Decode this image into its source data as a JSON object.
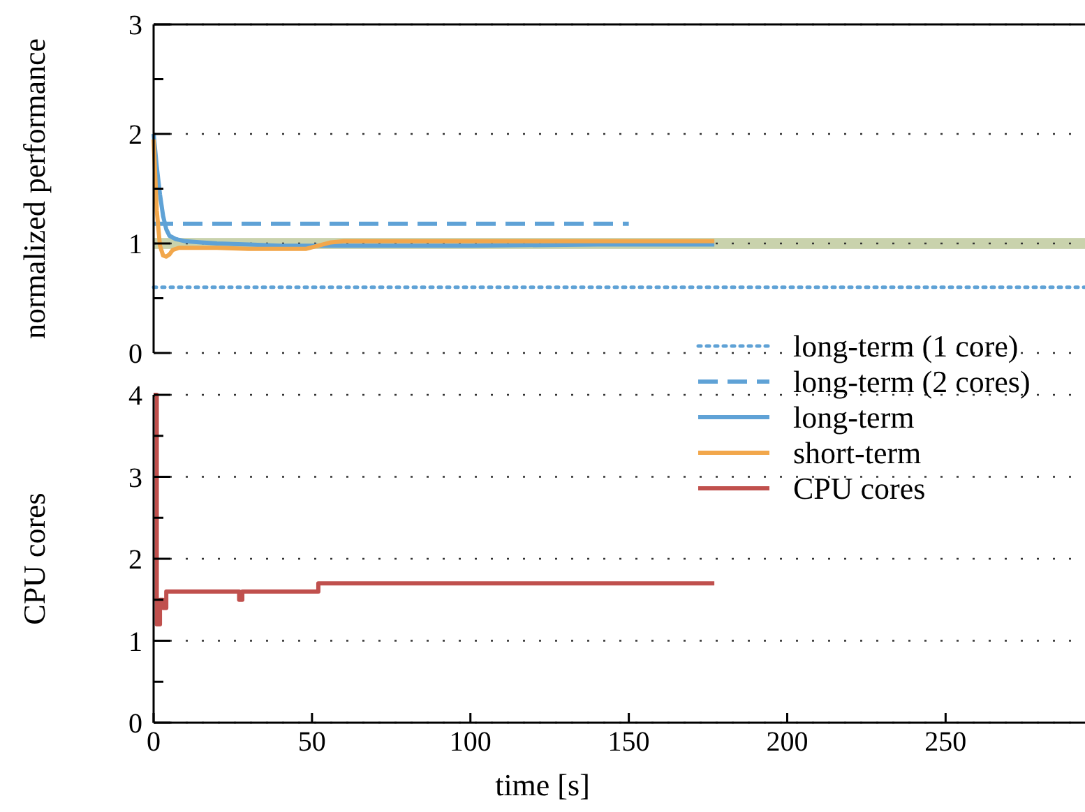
{
  "chart_data": [
    {
      "type": "line",
      "ylabel": "normalized performance",
      "xlim": [
        0,
        294
      ],
      "ylim": [
        0,
        3
      ],
      "yticks": [
        0,
        {
          "value": 0.5,
          "label": null
        },
        1,
        {
          "value": 1.5,
          "label": null
        },
        2,
        {
          "value": 2.5,
          "label": null
        },
        3
      ],
      "tick_labels": "y",
      "grid": "y",
      "legend": "bottom right",
      "bands": [
        {
          "axis": "y",
          "from": 0.95,
          "to": 1.05,
          "color": "#c9d2ac"
        }
      ],
      "series": [
        {
          "name": "long-term (1 core)",
          "color": "#5fa2d6",
          "line_style": "dotted",
          "x": [
            0,
            294
          ],
          "values": [
            0.6,
            0.6
          ]
        },
        {
          "name": "long-term (2 cores)",
          "color": "#5fa2d6",
          "line_style": "dashed",
          "x": [
            0,
            150
          ],
          "values": [
            1.18,
            1.18
          ]
        },
        {
          "name": "long-term",
          "color": "#5fa2d6",
          "line_style": "solid",
          "x": [
            0,
            1,
            2,
            3,
            4,
            5,
            7,
            10,
            15,
            20,
            30,
            40,
            50,
            60,
            80,
            100,
            140,
            177
          ],
          "values": [
            2.0,
            1.7,
            1.45,
            1.25,
            1.13,
            1.07,
            1.04,
            1.02,
            1.01,
            1.0,
            0.99,
            0.98,
            0.98,
            0.98,
            0.98,
            0.98,
            0.99,
            0.99
          ]
        },
        {
          "name": "short-term",
          "color": "#f2a74b",
          "line_style": "solid",
          "x": [
            0,
            1,
            2,
            3,
            4,
            5,
            6,
            8,
            10,
            20,
            30,
            40,
            48,
            52,
            56,
            60,
            80,
            100,
            140,
            177
          ],
          "values": [
            1.95,
            1.3,
            0.98,
            0.89,
            0.88,
            0.9,
            0.94,
            0.96,
            0.96,
            0.96,
            0.95,
            0.95,
            0.95,
            0.98,
            1.01,
            1.02,
            1.02,
            1.02,
            1.02,
            1.02
          ]
        }
      ]
    },
    {
      "type": "step",
      "xlabel": "time [s]",
      "ylabel": "CPU cores",
      "xlim": [
        0,
        294
      ],
      "ylim": [
        0,
        4
      ],
      "xticks": [
        0,
        50,
        100,
        150,
        200,
        250
      ],
      "yticks": [
        0,
        {
          "value": 0.5,
          "label": null
        },
        1,
        {
          "value": 1.5,
          "label": null
        },
        2,
        {
          "value": 2.5,
          "label": null
        },
        3,
        {
          "value": 3.5,
          "label": null
        },
        4
      ],
      "grid": "y",
      "legend": "top right",
      "series": [
        {
          "name": "CPU cores",
          "color": "#c0504d",
          "x": [
            0,
            1,
            2,
            3,
            4,
            27,
            28,
            52,
            177
          ],
          "values": [
            4,
            1.2,
            1.5,
            1.4,
            1.6,
            1.5,
            1.6,
            1.7,
            1.7
          ]
        }
      ]
    }
  ]
}
